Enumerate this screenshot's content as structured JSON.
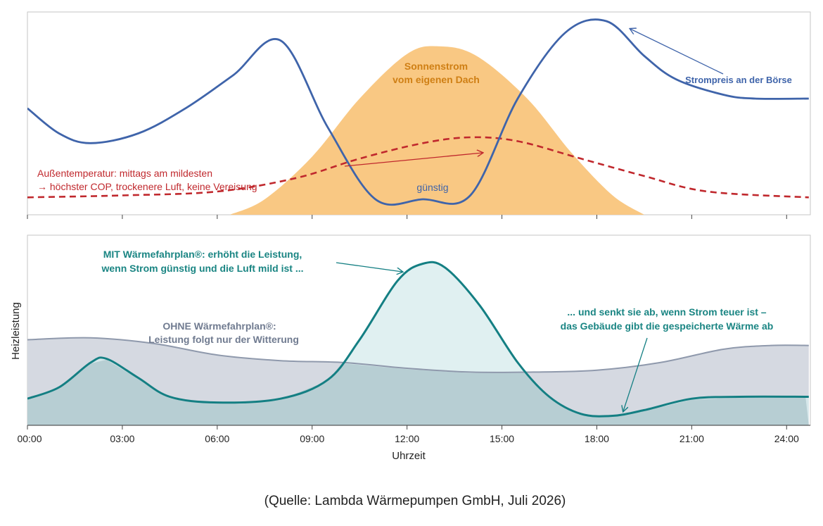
{
  "colors": {
    "price": "#3f64aa",
    "sun": "#f9c57c",
    "temperature": "#c0282d",
    "with_plan": "#147f83",
    "with_plan_fill": "#d6ebec",
    "without_plan": "#8f99ac",
    "without_plan_fill": "#d5d9e1",
    "overlap_fill": "#b7ced3"
  },
  "chart_data": [
    {
      "type": "area",
      "xrange": [
        "00:00",
        "24:45"
      ],
      "series": [
        {
          "name": "Strompreis an der Börse",
          "style": "line",
          "points": [
            [
              0,
              0.55
            ],
            [
              1,
              0.42
            ],
            [
              2,
              0.37
            ],
            [
              3.5,
              0.42
            ],
            [
              5,
              0.55
            ],
            [
              6.5,
              0.72
            ],
            [
              8,
              0.9
            ],
            [
              9.5,
              0.45
            ],
            [
              11,
              0.08
            ],
            [
              12.5,
              0.08
            ],
            [
              14,
              0.1
            ],
            [
              15.5,
              0.6
            ],
            [
              17,
              0.94
            ],
            [
              18.3,
              1.0
            ],
            [
              19.5,
              0.82
            ],
            [
              20.5,
              0.7
            ],
            [
              22,
              0.62
            ],
            [
              23,
              0.6
            ],
            [
              24.7,
              0.6
            ]
          ]
        },
        {
          "name": "Sonnenstrom vom eigenen Dach",
          "style": "area",
          "points": [
            [
              6.4,
              0.0
            ],
            [
              7.5,
              0.08
            ],
            [
              9,
              0.3
            ],
            [
              10.5,
              0.6
            ],
            [
              12,
              0.83
            ],
            [
              13,
              0.87
            ],
            [
              14.2,
              0.82
            ],
            [
              15.8,
              0.6
            ],
            [
              17.2,
              0.32
            ],
            [
              18.5,
              0.1
            ],
            [
              19.5,
              0.0
            ]
          ]
        },
        {
          "name": "Außentemperatur: mittags am mildesten",
          "style": "dashed",
          "points": [
            [
              0,
              0.09
            ],
            [
              3,
              0.1
            ],
            [
              6,
              0.12
            ],
            [
              8.5,
              0.19
            ],
            [
              10.5,
              0.29
            ],
            [
              12.5,
              0.37
            ],
            [
              14,
              0.4
            ],
            [
              15.5,
              0.38
            ],
            [
              17.5,
              0.29
            ],
            [
              19.5,
              0.2
            ],
            [
              21.5,
              0.12
            ],
            [
              24.7,
              0.09
            ]
          ]
        }
      ]
    },
    {
      "type": "area",
      "ylabel": "Heizleistung",
      "xlabel": "Uhrzeit",
      "xticks": [
        "00:00",
        "03:00",
        "06:00",
        "09:00",
        "12:00",
        "15:00",
        "18:00",
        "21:00",
        "24:00"
      ],
      "xrange": [
        "00:00",
        "24:45"
      ],
      "series": [
        {
          "name": "OHNE Wärmefahrplan®",
          "style": "area",
          "points": [
            [
              0,
              0.45
            ],
            [
              2,
              0.46
            ],
            [
              4,
              0.43
            ],
            [
              6,
              0.37
            ],
            [
              8,
              0.34
            ],
            [
              10,
              0.33
            ],
            [
              12,
              0.3
            ],
            [
              14,
              0.28
            ],
            [
              16,
              0.28
            ],
            [
              18,
              0.29
            ],
            [
              20,
              0.33
            ],
            [
              22,
              0.4
            ],
            [
              23.5,
              0.42
            ],
            [
              24.7,
              0.42
            ]
          ]
        },
        {
          "name": "MIT Wärmefahrplan®",
          "style": "area",
          "points": [
            [
              0,
              0.14
            ],
            [
              1,
              0.2
            ],
            [
              2,
              0.33
            ],
            [
              2.5,
              0.35
            ],
            [
              3.5,
              0.25
            ],
            [
              4.5,
              0.15
            ],
            [
              6,
              0.12
            ],
            [
              8,
              0.14
            ],
            [
              9.5,
              0.24
            ],
            [
              10.5,
              0.45
            ],
            [
              11.7,
              0.76
            ],
            [
              12.5,
              0.85
            ],
            [
              13.2,
              0.83
            ],
            [
              14.3,
              0.63
            ],
            [
              15.5,
              0.33
            ],
            [
              16.5,
              0.15
            ],
            [
              17.5,
              0.06
            ],
            [
              18.5,
              0.05
            ],
            [
              19.5,
              0.08
            ],
            [
              21,
              0.14
            ],
            [
              22.5,
              0.15
            ],
            [
              24.7,
              0.15
            ]
          ]
        }
      ]
    }
  ],
  "labels": {
    "sun_line1": "Sonnenstrom",
    "sun_line2": "vom eigenen Dach",
    "price": "Strompreis an der Börse",
    "temp_line1": "Außentemperatur: mittags am mildesten",
    "temp_line2": "→ höchster COP, trockenere Luft, keine Vereisung",
    "cheap": "günstig",
    "with_line1": "MIT Wärmefahrplan®: erhöht die Leistung,",
    "with_line2": "wenn Strom günstig und die Luft mild ist ...",
    "without_line1": "OHNE Wärmefahrplan®:",
    "without_line2": "Leistung folgt nur der Witterung",
    "lower_line1": "... und senkt sie ab, wenn Strom teuer ist –",
    "lower_line2": "das Gebäude gibt die gespeicherte Wärme ab"
  },
  "axes": {
    "ylabel": "Heizleistung",
    "xlabel": "Uhrzeit",
    "xticks": [
      "00:00",
      "03:00",
      "06:00",
      "09:00",
      "12:00",
      "15:00",
      "18:00",
      "21:00",
      "24:00"
    ]
  },
  "source": "(Quelle: Lambda Wärmepumpen GmbH, Juli 2026)"
}
